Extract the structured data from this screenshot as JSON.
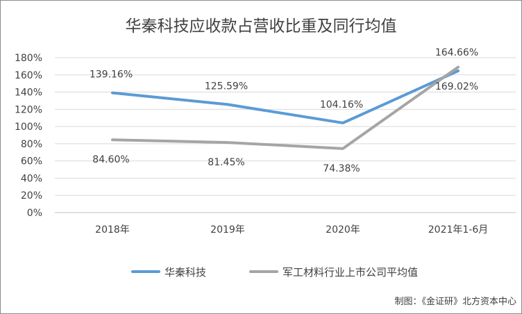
{
  "chart_data": {
    "type": "line",
    "title": "华秦科技应收款占营收比重及同行均值",
    "categories": [
      "2018年",
      "2019年",
      "2020年",
      "2021年1-6月"
    ],
    "y_ticks": [
      "0%",
      "20%",
      "40%",
      "60%",
      "80%",
      "100%",
      "120%",
      "140%",
      "160%",
      "180%"
    ],
    "ylim": [
      0,
      180
    ],
    "grid": "horizontal",
    "legend_position": "bottom",
    "series": [
      {
        "name": "华秦科技",
        "color": "#5b9bd5",
        "values": [
          139.16,
          125.59,
          104.16,
          164.66
        ],
        "labels": [
          "139.16%",
          "125.59%",
          "104.16%",
          "164.66%"
        ]
      },
      {
        "name": "军工材料行业上市公司平均值",
        "color": "#a5a5a5",
        "values": [
          84.6,
          81.45,
          74.38,
          169.02
        ],
        "labels": [
          "84.60%",
          "81.45%",
          "74.38%",
          "169.02%"
        ]
      }
    ]
  },
  "credit": "制图：《金证研》北方资本中心"
}
